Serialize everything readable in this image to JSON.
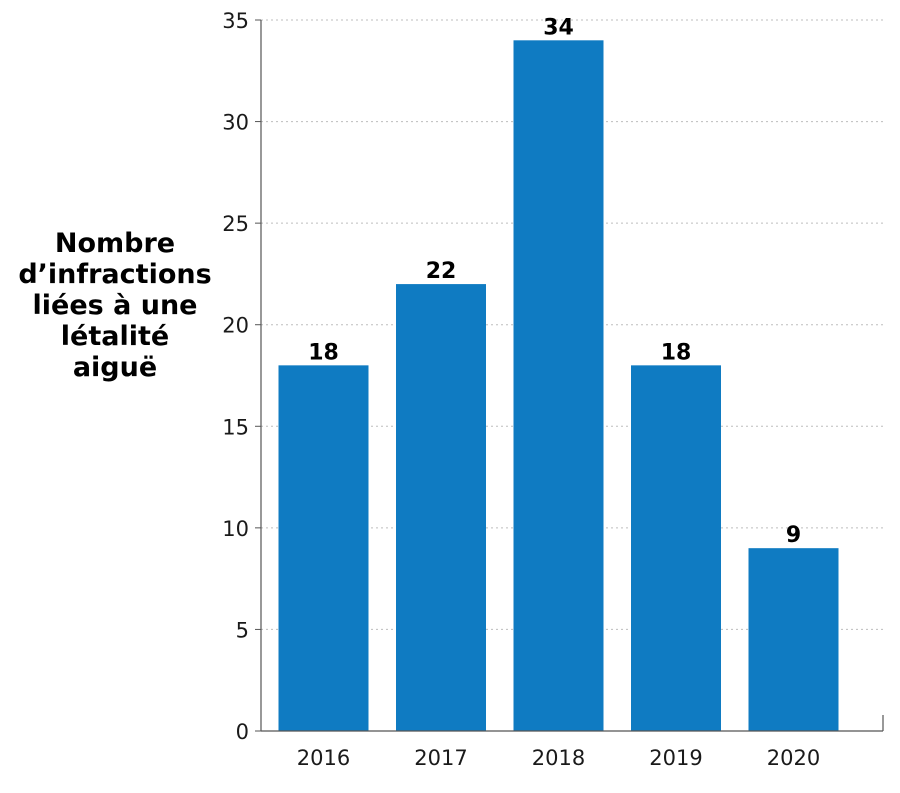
{
  "chart_data": {
    "type": "bar",
    "categories": [
      "2016",
      "2017",
      "2018",
      "2019",
      "2020"
    ],
    "values": [
      18,
      22,
      34,
      18,
      9
    ],
    "data_labels": [
      "18",
      "22",
      "34",
      "18",
      "9"
    ],
    "title": "",
    "xlabel": "",
    "ylabel_lines": [
      "Nombre",
      "d’infractions",
      "liées à une",
      "létalité",
      "aiguë"
    ],
    "ylim": [
      0,
      35
    ],
    "yticks": [
      0,
      5,
      10,
      15,
      20,
      25,
      30,
      35
    ],
    "ytick_labels": [
      "0",
      "5",
      "10",
      "15",
      "20",
      "25",
      "30",
      "35"
    ],
    "grid": true,
    "grid_style": "dotted",
    "legend": "none",
    "bar_color": "#0f7bc2",
    "axis_color": "#555555"
  }
}
